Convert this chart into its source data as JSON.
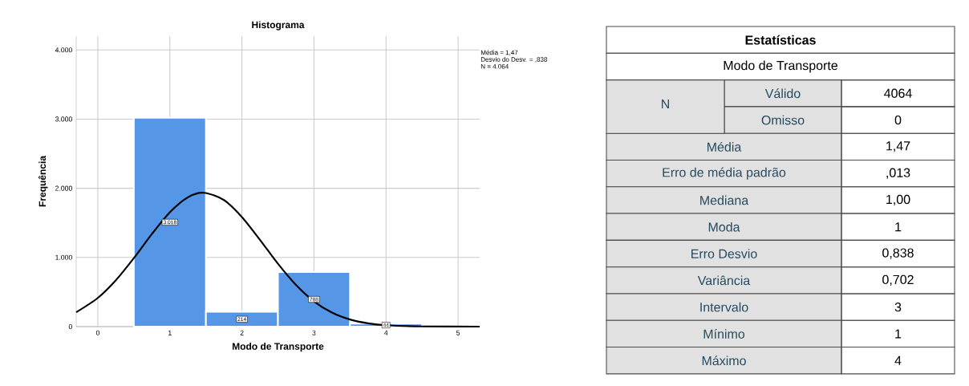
{
  "chart_data": [
    {
      "type": "histogram",
      "title": "Histograma",
      "xlabel": "Modo de Transporte",
      "ylabel": "Frequência",
      "bins": [
        0.5,
        1.5,
        2.5,
        3.5,
        4.5
      ],
      "series": [
        {
          "type": "histogram",
          "color": "#5596e6",
          "values": [
            3018,
            214,
            788,
            44
          ],
          "value_labels": [
            "3.018",
            "214",
            "788",
            "44"
          ]
        },
        {
          "type": "line",
          "color": "#000000",
          "x": [
            -0.3,
            0,
            0.25,
            0.5,
            0.75,
            1,
            1.25,
            1.47,
            1.75,
            2,
            2.25,
            2.5,
            2.75,
            3,
            3.25,
            3.5,
            3.75,
            4,
            4.5,
            5.3
          ],
          "values": [
            208,
            415,
            670,
            990,
            1338,
            1653,
            1870,
            1935,
            1830,
            1584,
            1255,
            909,
            603,
            365,
            203,
            103,
            48,
            20,
            3,
            0
          ]
        }
      ],
      "xlim": [
        -0.3,
        5.3
      ],
      "ylim": [
        0,
        4200
      ],
      "xticks": [
        0,
        1,
        2,
        3,
        4,
        5
      ],
      "yticks": [
        0,
        {
          "value": 1000,
          "label": "1.000"
        },
        {
          "value": 2000,
          "label": "2.000"
        },
        {
          "value": 3000,
          "label": "3.000"
        },
        {
          "value": 4000,
          "label": "4.000"
        }
      ],
      "grid": true,
      "annotations": [
        "Média = 1,47",
        "Desvio do Desv. = ,838",
        "N = 4.064"
      ]
    },
    {
      "type": "other",
      "title": "Estatísticas",
      "subtitle": "Modo de Transporte",
      "annotations": [
        "N"
      ],
      "categories": [
        "Válido",
        "Omisso",
        "Média",
        "Erro de média padrão",
        "Mediana",
        "Moda",
        "Erro Desvio",
        "Variância",
        "Intervalo",
        "Mínimo",
        "Máximo"
      ],
      "value_labels": [
        "4064",
        "0",
        "1,47",
        ",013",
        "1,00",
        "1",
        "0,838",
        "0,702",
        "3",
        "1",
        "4"
      ]
    }
  ]
}
